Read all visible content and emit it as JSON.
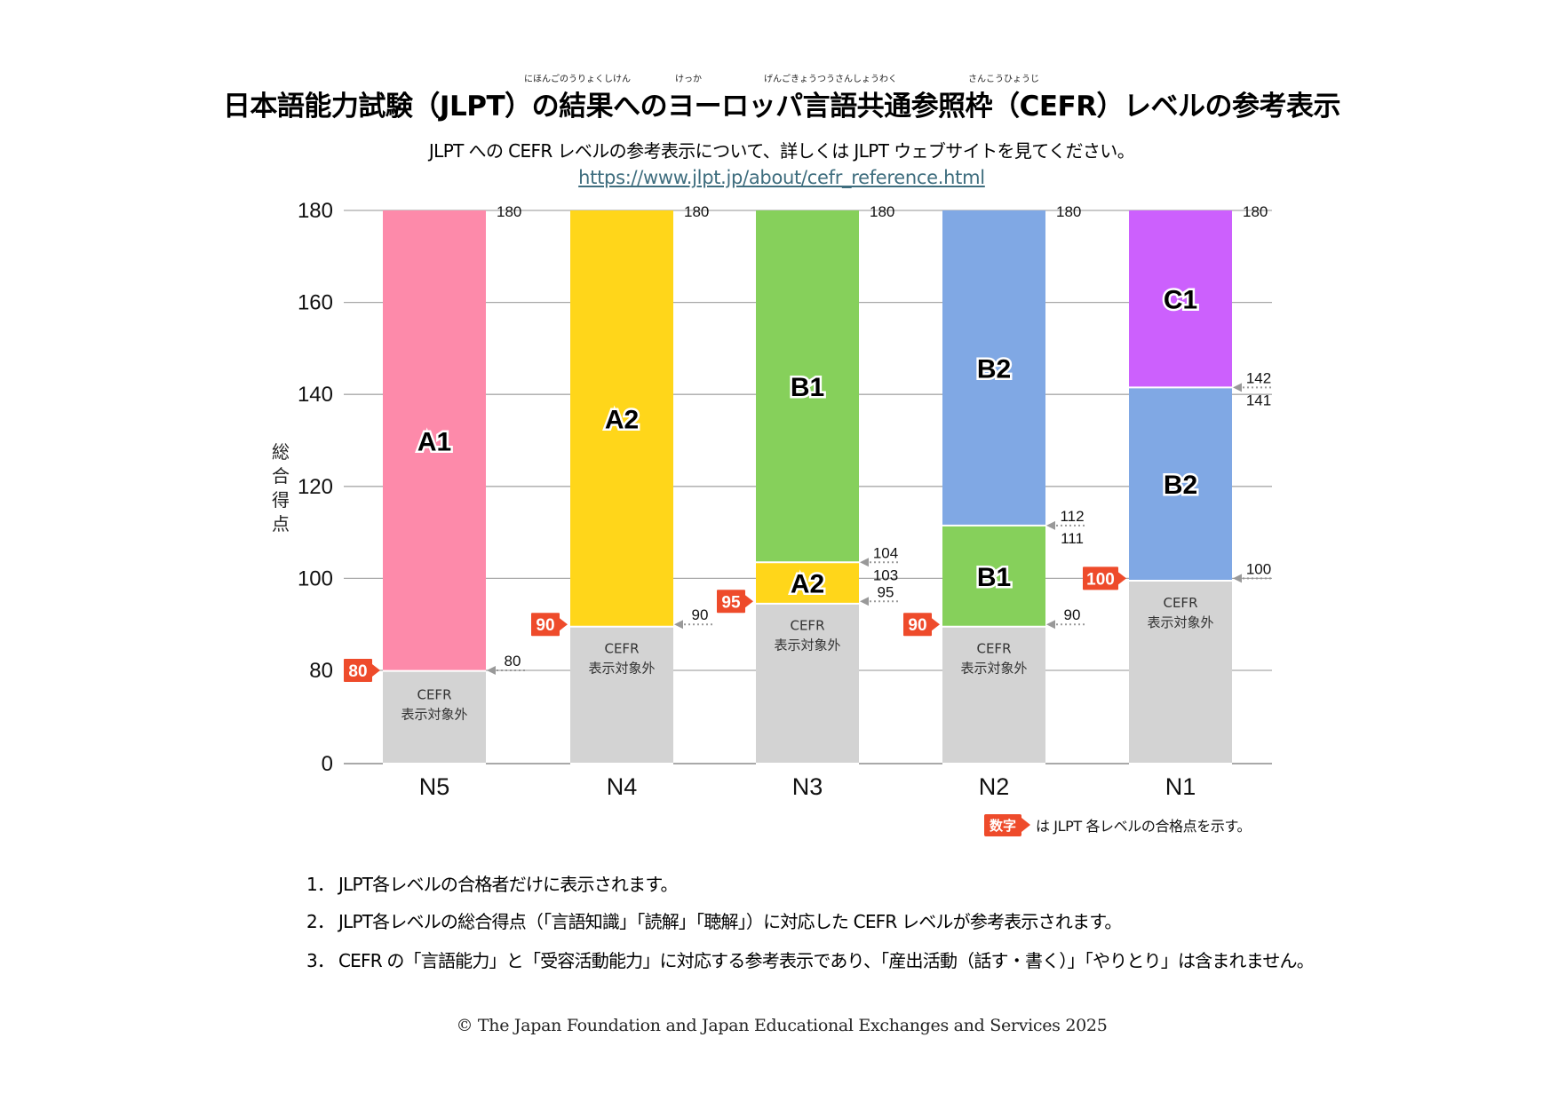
{
  "header": {
    "title": "日本語能力試験（JLPT）の結果へのヨーロッパ言語共通参照枠（CEFR）レベルの参考表示",
    "title_ruby": "にほんごのうりょくしけん　　　　　けっか　　　　　　　げんごきょうつうさんしょうわく　　　　　　　　さんこうひょうじ",
    "subtitle": "JLPT への CEFR レベルの参考表示について、詳しくは JLPT ウェブサイトを見てください。",
    "url": "https://www.jlpt.jp/about/cefr_reference.html"
  },
  "chart_data": {
    "type": "bar",
    "stacked": true,
    "title": "日本語能力試験（JLPT）の結果へのヨーロッパ言語共通参照枠（CEFR）レベルの参考表示",
    "xlabel": "",
    "ylabel": "総合得点",
    "ylim": [
      0,
      180
    ],
    "yticks": [
      0,
      80,
      100,
      120,
      140,
      160,
      180
    ],
    "y_axis_note": "axis break between 0 and 80 (compressed)",
    "grid": true,
    "categories": [
      "N5",
      "N4",
      "N3",
      "N2",
      "N1"
    ],
    "bars": [
      {
        "category": "N5",
        "pass_mark": 80,
        "segments": [
          {
            "label": "CEFR\n表示対象外",
            "from": 0,
            "to": 80,
            "color": "#d3d3d3",
            "kind": "excluded"
          },
          {
            "label": "A1",
            "from": 80,
            "to": 180,
            "color": "#fd8aaa"
          }
        ],
        "boundary_labels": [
          {
            "value": 80,
            "texts": [
              "80"
            ]
          },
          {
            "value": 180,
            "texts": [
              "180"
            ]
          }
        ]
      },
      {
        "category": "N4",
        "pass_mark": 90,
        "segments": [
          {
            "label": "CEFR\n表示対象外",
            "from": 0,
            "to": 90,
            "color": "#d3d3d3",
            "kind": "excluded"
          },
          {
            "label": "A2",
            "from": 90,
            "to": 180,
            "color": "#ffd61a"
          }
        ],
        "boundary_labels": [
          {
            "value": 90,
            "texts": [
              "90"
            ]
          },
          {
            "value": 180,
            "texts": [
              "180"
            ]
          }
        ]
      },
      {
        "category": "N3",
        "pass_mark": 95,
        "segments": [
          {
            "label": "CEFR\n表示対象外",
            "from": 0,
            "to": 95,
            "color": "#d3d3d3",
            "kind": "excluded"
          },
          {
            "label": "A2",
            "from": 95,
            "to": 103,
            "color": "#ffd61a"
          },
          {
            "label": "B1",
            "from": 104,
            "to": 180,
            "color": "#86d05b"
          }
        ],
        "boundary_labels": [
          {
            "value": 95,
            "texts": [
              "95"
            ]
          },
          {
            "value": 103.5,
            "texts": [
              "104",
              "103"
            ]
          },
          {
            "value": 180,
            "texts": [
              "180"
            ]
          }
        ]
      },
      {
        "category": "N2",
        "pass_mark": 90,
        "segments": [
          {
            "label": "CEFR\n表示対象外",
            "from": 0,
            "to": 90,
            "color": "#d3d3d3",
            "kind": "excluded"
          },
          {
            "label": "B1",
            "from": 90,
            "to": 111,
            "color": "#86d05b"
          },
          {
            "label": "B2",
            "from": 112,
            "to": 180,
            "color": "#80a8e4"
          }
        ],
        "boundary_labels": [
          {
            "value": 90,
            "texts": [
              "90"
            ]
          },
          {
            "value": 111.5,
            "texts": [
              "112",
              "111"
            ]
          },
          {
            "value": 180,
            "texts": [
              "180"
            ]
          }
        ]
      },
      {
        "category": "N1",
        "pass_mark": 100,
        "segments": [
          {
            "label": "CEFR\n表示対象外",
            "from": 0,
            "to": 100,
            "color": "#d3d3d3",
            "kind": "excluded"
          },
          {
            "label": "B2",
            "from": 100,
            "to": 141,
            "color": "#80a8e4"
          },
          {
            "label": "C1",
            "from": 142,
            "to": 180,
            "color": "#cc60fd"
          }
        ],
        "boundary_labels": [
          {
            "value": 100,
            "texts": [
              "100"
            ]
          },
          {
            "value": 141.5,
            "texts": [
              "142",
              "141"
            ]
          },
          {
            "value": 180,
            "texts": [
              "180"
            ]
          }
        ]
      }
    ],
    "legend": {
      "badge": "数字",
      "text": "は JLPT 各レベルの合格点を示す。",
      "placement": "bottom-right"
    },
    "colors": {
      "pass_badge": "#ee4b2b",
      "grid": "#a9a9a9",
      "arrow": "#999999"
    }
  },
  "notes": [
    {
      "num": "1．",
      "text": "JLPT各レベルの合格者だけに表示されます。"
    },
    {
      "num": "2．",
      "text": "JLPT各レベルの総合得点（「言語知識」「読解」「聴解」）に対応した CEFR レベルが参考表示されます。"
    },
    {
      "num": "3．",
      "text": "CEFR の「言語能力」と「受容活動能力」に対応する参考表示であり、「産出活動（話す・書く）」「やりとり」は含まれません。"
    }
  ],
  "footer": {
    "copyright": "© The Japan Foundation and Japan Educational Exchanges and Services 2025"
  }
}
